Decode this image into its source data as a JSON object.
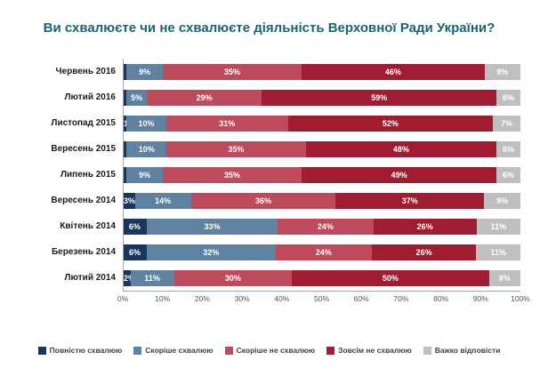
{
  "title": {
    "text": "Ви схвалюєте чи не схвалюєте діяльність Верховної Ради України?",
    "color": "#1A6470"
  },
  "chart_data": {
    "type": "bar",
    "stacked": true,
    "orientation": "horizontal",
    "title": "Ви схвалюєте чи не схвалюєте діяльність Верховної Ради України?",
    "categories": [
      "Червень 2016",
      "Лютий 2016",
      "Листопад 2015",
      "Вересень 2015",
      "Липень 2015",
      "Вересень 2014",
      "Квітень 2014",
      "Березень 2014",
      "Лютий 2014"
    ],
    "series": [
      {
        "name": "Повністю схвалюю",
        "color": "#17375E",
        "values": [
          1,
          1,
          1,
          1,
          1,
          3,
          6,
          6,
          2
        ],
        "labels": [
          "",
          "",
          "1%",
          "",
          "",
          "3%",
          "6%",
          "6%",
          "2%"
        ]
      },
      {
        "name": "Скоріше схвалюю",
        "color": "#5E82A0",
        "values": [
          9,
          5,
          10,
          10,
          9,
          14,
          33,
          32,
          11
        ],
        "labels": [
          "9%",
          "5%",
          "10%",
          "10%",
          "9%",
          "14%",
          "33%",
          "32%",
          "11%"
        ]
      },
      {
        "name": "Скоріше не схвалюю",
        "color": "#BE4B5C",
        "values": [
          35,
          29,
          31,
          35,
          35,
          36,
          24,
          24,
          30
        ],
        "labels": [
          "35%",
          "29%",
          "31%",
          "35%",
          "35%",
          "36%",
          "24%",
          "24%",
          "30%"
        ]
      },
      {
        "name": "Зовсім не схвалюю",
        "color": "#A01C30",
        "values": [
          46,
          59,
          52,
          48,
          49,
          37,
          26,
          26,
          50
        ],
        "labels": [
          "46%",
          "59%",
          "52%",
          "48%",
          "49%",
          "37%",
          "26%",
          "26%",
          "50%"
        ]
      },
      {
        "name": "Важко відповісти",
        "color": "#BFBFBF",
        "values": [
          9,
          6,
          7,
          6,
          6,
          9,
          11,
          11,
          8
        ],
        "labels": [
          "9%",
          "6%",
          "7%",
          "6%",
          "6%",
          "9%",
          "11%",
          "11%",
          "8%"
        ]
      }
    ],
    "xlim": [
      0,
      100
    ],
    "x_ticks": [
      "0%",
      "10%",
      "20%",
      "30%",
      "40%",
      "50%",
      "60%",
      "70%",
      "80%",
      "90%",
      "100%"
    ],
    "legend_position": "bottom"
  }
}
